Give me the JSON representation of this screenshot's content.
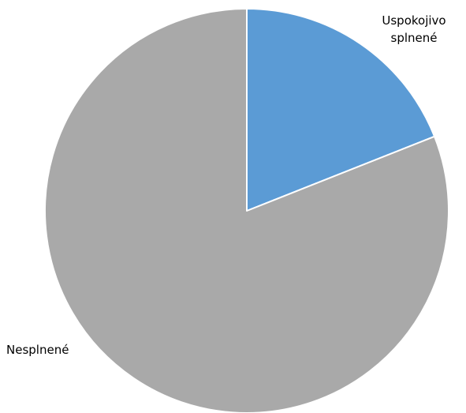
{
  "chart_data": {
    "type": "pie",
    "title": "",
    "slices": [
      {
        "label_lines": [
          "Uspokojivo",
          "splnené"
        ],
        "value": 19,
        "color": "#5b9bd5"
      },
      {
        "label_lines": [
          "Nesplnené"
        ],
        "value": 81,
        "color": "#a9a9a9"
      }
    ],
    "start_angle": "12 o'clock",
    "direction": "clockwise",
    "legend": "none"
  }
}
